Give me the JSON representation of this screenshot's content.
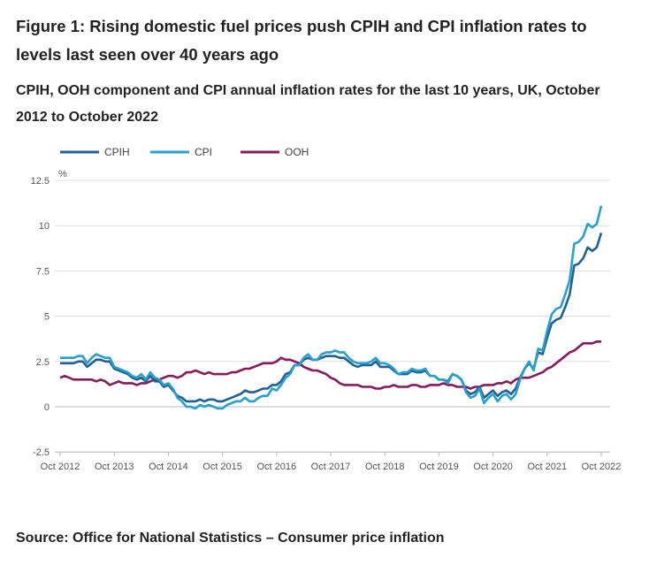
{
  "title": "Figure 1: Rising domestic fuel prices push CPIH and CPI inflation rates to levels last seen over 40 years ago",
  "subtitle": "CPIH, OOH component and CPI annual inflation rates for the last 10 years, UK, October 2012 to October 2022",
  "source": "Source: Office for National Statistics – Consumer price inflation",
  "chart_data": {
    "type": "line",
    "title": "",
    "ylabel": "%",
    "xlabel": "",
    "x_start": "Oct 2012",
    "x_end": "Oct 2022",
    "x_frequency": "monthly",
    "x_ticks": [
      "Oct 2012",
      "Oct 2013",
      "Oct 2014",
      "Oct 2015",
      "Oct 2016",
      "Oct 2017",
      "Oct 2018",
      "Oct 2019",
      "Oct 2020",
      "Oct 2021",
      "Oct 2022"
    ],
    "y_ticks": [
      "12.5",
      "10",
      "7.5",
      "5",
      "2.5",
      "0",
      "-2.5"
    ],
    "ylim": [
      -2.5,
      12.5
    ],
    "grid": true,
    "legend_placement": "top-left",
    "series": [
      {
        "name": "CPIH",
        "color": "#206095",
        "values": [
          2.4,
          2.4,
          2.4,
          2.4,
          2.5,
          2.5,
          2.2,
          2.4,
          2.6,
          2.6,
          2.5,
          2.5,
          2.1,
          2.0,
          1.9,
          1.8,
          1.6,
          1.5,
          1.6,
          1.4,
          1.7,
          1.4,
          1.4,
          1.1,
          1.2,
          0.9,
          0.6,
          0.5,
          0.3,
          0.3,
          0.3,
          0.4,
          0.3,
          0.4,
          0.4,
          0.3,
          0.3,
          0.4,
          0.5,
          0.6,
          0.7,
          0.9,
          0.8,
          0.8,
          0.9,
          1.0,
          1.0,
          1.2,
          1.2,
          1.4,
          1.8,
          1.9,
          2.3,
          2.3,
          2.6,
          2.7,
          2.6,
          2.6,
          2.7,
          2.8,
          2.8,
          2.8,
          2.7,
          2.7,
          2.5,
          2.3,
          2.2,
          2.3,
          2.3,
          2.3,
          2.5,
          2.2,
          2.2,
          2.2,
          2.0,
          1.8,
          1.8,
          1.8,
          2.0,
          1.9,
          1.9,
          2.0,
          1.7,
          1.7,
          1.5,
          1.5,
          1.4,
          1.8,
          1.7,
          1.5,
          0.9,
          0.7,
          0.8,
          1.1,
          0.5,
          0.7,
          0.9,
          0.6,
          0.8,
          0.9,
          0.7,
          1.0,
          1.6,
          2.1,
          2.4,
          2.1,
          3.0,
          2.9,
          3.8,
          4.6,
          4.8,
          4.9,
          5.5,
          6.2,
          7.8,
          7.9,
          8.2,
          8.8,
          8.6,
          8.8,
          9.6
        ]
      },
      {
        "name": "CPI",
        "color": "#27a0cc",
        "values": [
          2.7,
          2.7,
          2.7,
          2.7,
          2.8,
          2.8,
          2.4,
          2.7,
          2.9,
          2.8,
          2.7,
          2.7,
          2.2,
          2.1,
          2.0,
          1.9,
          1.7,
          1.6,
          1.8,
          1.5,
          1.9,
          1.6,
          1.5,
          1.2,
          1.3,
          1.0,
          0.5,
          0.3,
          0.0,
          0.0,
          -0.1,
          0.1,
          0.0,
          0.1,
          0.0,
          -0.1,
          -0.1,
          0.1,
          0.2,
          0.3,
          0.3,
          0.5,
          0.3,
          0.3,
          0.5,
          0.6,
          0.6,
          1.0,
          0.9,
          1.2,
          1.6,
          1.8,
          2.3,
          2.3,
          2.7,
          2.9,
          2.6,
          2.6,
          2.9,
          3.0,
          3.0,
          3.1,
          3.0,
          3.0,
          2.7,
          2.5,
          2.4,
          2.4,
          2.4,
          2.5,
          2.7,
          2.4,
          2.4,
          2.3,
          2.1,
          1.8,
          1.9,
          1.9,
          2.1,
          2.0,
          2.0,
          2.1,
          1.7,
          1.7,
          1.5,
          1.5,
          1.3,
          1.8,
          1.7,
          1.5,
          0.8,
          0.5,
          0.6,
          1.0,
          0.2,
          0.5,
          0.7,
          0.3,
          0.6,
          0.7,
          0.4,
          0.7,
          1.5,
          2.1,
          2.5,
          2.0,
          3.2,
          3.1,
          4.2,
          5.1,
          5.4,
          5.5,
          6.2,
          7.0,
          9.0,
          9.1,
          9.4,
          10.1,
          9.9,
          10.1,
          11.1
        ]
      },
      {
        "name": "OOH",
        "color": "#871a5b",
        "values": [
          1.6,
          1.7,
          1.6,
          1.5,
          1.5,
          1.5,
          1.5,
          1.5,
          1.4,
          1.5,
          1.4,
          1.2,
          1.3,
          1.4,
          1.3,
          1.3,
          1.3,
          1.2,
          1.3,
          1.3,
          1.4,
          1.5,
          1.5,
          1.6,
          1.7,
          1.7,
          1.6,
          1.7,
          1.9,
          1.9,
          2.0,
          1.9,
          1.8,
          1.9,
          1.8,
          1.8,
          1.8,
          1.8,
          1.9,
          1.9,
          2.0,
          2.1,
          2.1,
          2.2,
          2.3,
          2.4,
          2.4,
          2.4,
          2.5,
          2.7,
          2.6,
          2.6,
          2.5,
          2.4,
          2.2,
          2.1,
          2.0,
          2.0,
          1.9,
          1.8,
          1.6,
          1.5,
          1.3,
          1.2,
          1.2,
          1.2,
          1.2,
          1.1,
          1.1,
          1.1,
          1.0,
          1.0,
          1.1,
          1.1,
          1.2,
          1.1,
          1.1,
          1.1,
          1.2,
          1.2,
          1.1,
          1.1,
          1.2,
          1.2,
          1.2,
          1.3,
          1.2,
          1.2,
          1.1,
          1.1,
          1.1,
          1.0,
          1.1,
          1.1,
          1.2,
          1.2,
          1.2,
          1.3,
          1.3,
          1.4,
          1.3,
          1.5,
          1.6,
          1.6,
          1.6,
          1.7,
          1.8,
          1.9,
          2.1,
          2.2,
          2.4,
          2.6,
          2.8,
          3.0,
          3.1,
          3.3,
          3.5,
          3.5,
          3.5,
          3.6,
          3.6
        ]
      }
    ]
  }
}
